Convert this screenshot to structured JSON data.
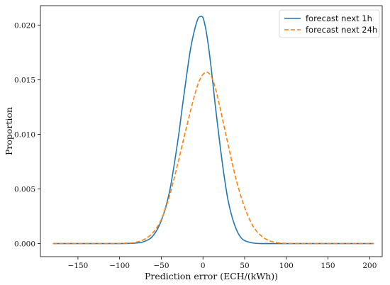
{
  "chart_data": {
    "type": "line",
    "xlabel": "Prediction error (ECH/(kWh))",
    "ylabel": "Proportion",
    "xlim": [
      -195,
      215
    ],
    "ylim": [
      -0.0012,
      0.0218
    ],
    "x_ticks": [
      -150,
      -100,
      -50,
      0,
      50,
      100,
      150,
      200
    ],
    "x_tick_labels": [
      "−150",
      "−100",
      "−50",
      "0",
      "50",
      "100",
      "150",
      "200"
    ],
    "y_ticks": [
      0.0,
      0.005,
      0.01,
      0.015,
      0.02
    ],
    "y_tick_labels": [
      "0.000",
      "0.005",
      "0.010",
      "0.015",
      "0.020"
    ],
    "grid": false,
    "legend": "top-right",
    "series": [
      {
        "name": "forecast next 1h",
        "color": "#1f77b4",
        "style": "solid",
        "points": [
          [
            -180,
            0.0
          ],
          [
            -100,
            0.0
          ],
          [
            -80,
            5e-05
          ],
          [
            -70,
            0.0002
          ],
          [
            -60,
            0.0007
          ],
          [
            -50,
            0.0021
          ],
          [
            -40,
            0.0048
          ],
          [
            -30,
            0.0095
          ],
          [
            -25,
            0.0124
          ],
          [
            -20,
            0.0152
          ],
          [
            -15,
            0.0178
          ],
          [
            -10,
            0.0196
          ],
          [
            -6,
            0.0206
          ],
          [
            -3,
            0.0208
          ],
          [
            0,
            0.0207
          ],
          [
            3,
            0.0198
          ],
          [
            6,
            0.0184
          ],
          [
            10,
            0.016
          ],
          [
            15,
            0.0125
          ],
          [
            20,
            0.0093
          ],
          [
            25,
            0.0064
          ],
          [
            30,
            0.004
          ],
          [
            35,
            0.0024
          ],
          [
            40,
            0.0013
          ],
          [
            45,
            0.0006
          ],
          [
            50,
            0.00027
          ],
          [
            60,
            5e-05
          ],
          [
            70,
            0.0
          ],
          [
            100,
            0.0
          ],
          [
            205,
            0.0
          ]
        ]
      },
      {
        "name": "forecast next 24h",
        "color": "#ff7f0e",
        "style": "dashed",
        "points": [
          [
            -180,
            0.0
          ],
          [
            -110,
            0.0
          ],
          [
            -90,
            4e-05
          ],
          [
            -80,
            0.00012
          ],
          [
            -70,
            0.0004
          ],
          [
            -60,
            0.001
          ],
          [
            -50,
            0.0022
          ],
          [
            -40,
            0.0044
          ],
          [
            -30,
            0.0074
          ],
          [
            -20,
            0.0106
          ],
          [
            -10,
            0.0136
          ],
          [
            -5,
            0.0148
          ],
          [
            0,
            0.0155
          ],
          [
            5,
            0.0157
          ],
          [
            10,
            0.0153
          ],
          [
            15,
            0.0142
          ],
          [
            20,
            0.0126
          ],
          [
            30,
            0.0091
          ],
          [
            40,
            0.0058
          ],
          [
            50,
            0.0033
          ],
          [
            60,
            0.0016
          ],
          [
            70,
            0.0007
          ],
          [
            80,
            0.00025
          ],
          [
            90,
            7e-05
          ],
          [
            100,
            2e-05
          ],
          [
            120,
            0.0
          ],
          [
            205,
            0.0
          ]
        ]
      }
    ]
  }
}
